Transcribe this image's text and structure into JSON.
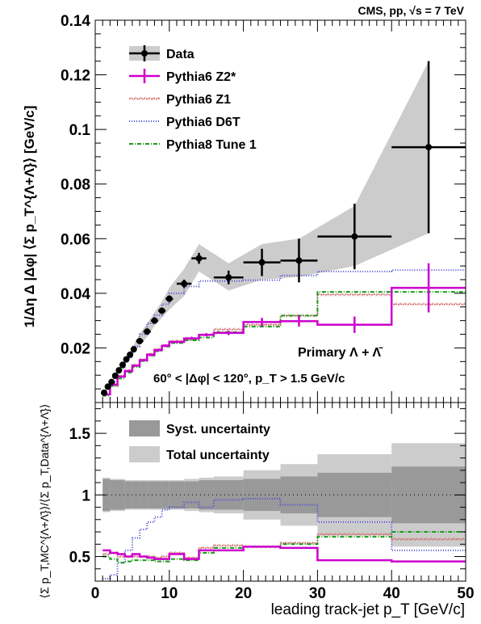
{
  "header": {
    "label": "CMS, pp, √s = 7 TeV"
  },
  "chart_data": {
    "type": "line",
    "title": "",
    "xlabel": "leading track-jet p_T [GeV/c]",
    "xlim": [
      0,
      50
    ],
    "top": {
      "ylabel": "1/Δη Δ |Δφ| ⟨Σ p_T^{Λ+Λ̄}⟩ [GeV/c]",
      "ylim": [
        0,
        0.14
      ],
      "yticks": [
        0.02,
        0.04,
        0.06,
        0.08,
        0.1,
        0.12,
        0.14
      ],
      "legend": [
        "Data",
        "Pythia6 Z2*",
        "Pythia6 Z1",
        "Pythia6 D6T",
        "Pythia8 Tune 1"
      ],
      "annotation1": "Primary Λ + Λ̄",
      "annotation2": "60° < |Δφ| < 120°, p_T > 1.5 GeV/c",
      "data": {
        "x": [
          1.2,
          1.7,
          2.2,
          2.7,
          3.2,
          3.7,
          4.2,
          4.7,
          5.2,
          6,
          7,
          8,
          9,
          10,
          12,
          14,
          18,
          22.5,
          27.5,
          35,
          45
        ],
        "xerr": [
          0.25,
          0.25,
          0.25,
          0.25,
          0.25,
          0.25,
          0.25,
          0.25,
          0.25,
          0.5,
          0.5,
          0.5,
          0.5,
          0.5,
          1,
          1,
          2,
          2.5,
          2.5,
          5,
          5
        ],
        "y": [
          0.0036,
          0.0058,
          0.0075,
          0.0098,
          0.0118,
          0.0138,
          0.0158,
          0.0175,
          0.0195,
          0.0225,
          0.026,
          0.03,
          0.0336,
          0.038,
          0.0435,
          0.0528,
          0.0458,
          0.0513,
          0.052,
          0.0608,
          0.0935
        ],
        "yerr": [
          0.0004,
          0.0005,
          0.0005,
          0.0005,
          0.0006,
          0.0006,
          0.0006,
          0.0007,
          0.0007,
          0.0008,
          0.0009,
          0.001,
          0.001,
          0.0012,
          0.0015,
          0.002,
          0.0025,
          0.005,
          0.008,
          0.012,
          0.0315
        ],
        "band_low": [
          0.0033,
          0.0052,
          0.0068,
          0.009,
          0.011,
          0.0128,
          0.0146,
          0.0162,
          0.018,
          0.021,
          0.024,
          0.028,
          0.031,
          0.034,
          0.039,
          0.048,
          0.041,
          0.045,
          0.046,
          0.05,
          0.062
        ],
        "band_high": [
          0.0039,
          0.0064,
          0.0082,
          0.0106,
          0.0128,
          0.0148,
          0.017,
          0.0188,
          0.021,
          0.025,
          0.029,
          0.033,
          0.037,
          0.042,
          0.049,
          0.058,
          0.051,
          0.058,
          0.06,
          0.072,
          0.125
        ]
      },
      "series": [
        {
          "name": "Pythia6 Z2*",
          "edges": [
            1,
            2,
            3,
            4,
            5,
            6,
            7,
            8,
            9,
            10,
            12,
            14,
            16,
            20,
            25,
            30,
            40,
            50
          ],
          "values": [
            0.003,
            0.0065,
            0.0095,
            0.0115,
            0.0135,
            0.0155,
            0.0175,
            0.0192,
            0.0208,
            0.0222,
            0.0235,
            0.0248,
            0.0255,
            0.0295,
            0.0298,
            0.0285,
            0.042
          ],
          "yerr": [
            0.0003,
            0.0004,
            0.0004,
            0.0004,
            0.0004,
            0.0004,
            0.0005,
            0.0005,
            0.0005,
            0.0005,
            0.0006,
            0.0006,
            0.0008,
            0.0015,
            0.002,
            0.003,
            0.009
          ]
        },
        {
          "name": "Pythia6 Z1",
          "edges": [
            1,
            2,
            3,
            4,
            5,
            6,
            7,
            8,
            9,
            10,
            12,
            14,
            16,
            20,
            25,
            30,
            40,
            50
          ],
          "values": [
            0.003,
            0.0065,
            0.0098,
            0.0118,
            0.0138,
            0.0158,
            0.0178,
            0.0195,
            0.021,
            0.0225,
            0.0232,
            0.0248,
            0.0268,
            0.0285,
            0.0318,
            0.0395,
            0.036
          ]
        },
        {
          "name": "Pythia6 D6T",
          "edges": [
            1,
            2,
            3,
            4,
            5,
            6,
            7,
            8,
            9,
            10,
            12,
            14,
            16,
            20,
            25,
            30,
            40,
            50
          ],
          "values": [
            0.003,
            0.0075,
            0.0125,
            0.0165,
            0.0205,
            0.025,
            0.029,
            0.032,
            0.036,
            0.04,
            0.0425,
            0.0445,
            0.0445,
            0.0448,
            0.0465,
            0.048,
            0.0485
          ]
        },
        {
          "name": "Pythia8 Tune 1",
          "edges": [
            1,
            2,
            3,
            4,
            5,
            6,
            7,
            8,
            9,
            10,
            12,
            14,
            16,
            20,
            25,
            30,
            40,
            50
          ],
          "values": [
            0.0025,
            0.006,
            0.0088,
            0.011,
            0.013,
            0.0152,
            0.0172,
            0.0188,
            0.0205,
            0.0218,
            0.0228,
            0.0238,
            0.0258,
            0.0278,
            0.0318,
            0.0405,
            0.0405
          ]
        }
      ]
    },
    "bottom": {
      "ylabel": "⟨Σ p_T,MC^{Λ+Λ̄}⟩/⟨Σ p_T,Data^{Λ+Λ̄}⟩",
      "ylim": [
        0.3,
        1.75
      ],
      "yticks": [
        0.5,
        1,
        1.5
      ],
      "legend": [
        "Syst. uncertainty",
        "Total uncertainty"
      ],
      "edges": [
        1,
        2,
        3,
        4,
        5,
        6,
        7,
        8,
        9,
        10,
        12,
        14,
        16,
        20,
        25,
        30,
        40,
        50
      ],
      "syst": [
        0.13,
        0.12,
        0.12,
        0.11,
        0.11,
        0.11,
        0.11,
        0.11,
        0.11,
        0.11,
        0.11,
        0.12,
        0.12,
        0.13,
        0.15,
        0.18,
        0.23
      ],
      "total": [
        0.14,
        0.13,
        0.13,
        0.12,
        0.12,
        0.12,
        0.12,
        0.12,
        0.12,
        0.12,
        0.13,
        0.14,
        0.15,
        0.2,
        0.25,
        0.33,
        0.42
      ],
      "ratios": [
        {
          "name": "Pythia6 Z2*",
          "values": [
            0.55,
            0.53,
            0.52,
            0.5,
            0.52,
            0.5,
            0.49,
            0.48,
            0.48,
            0.52,
            0.48,
            0.55,
            0.55,
            0.58,
            0.57,
            0.47,
            0.46
          ]
        },
        {
          "name": "Pythia6 Z1",
          "values": [
            0.52,
            0.53,
            0.5,
            0.5,
            0.5,
            0.5,
            0.5,
            0.49,
            0.5,
            0.53,
            0.49,
            0.57,
            0.59,
            0.58,
            0.61,
            0.68,
            0.64
          ]
        },
        {
          "name": "Pythia6 D6T",
          "values": [
            0.32,
            0.35,
            0.45,
            0.55,
            0.65,
            0.72,
            0.78,
            0.82,
            0.88,
            0.9,
            0.94,
            0.9,
            0.96,
            0.97,
            0.92,
            0.78,
            0.55
          ]
        },
        {
          "name": "Pythia8 Tune 1",
          "values": [
            0.5,
            0.48,
            0.45,
            0.46,
            0.47,
            0.47,
            0.47,
            0.46,
            0.46,
            0.48,
            0.47,
            0.53,
            0.57,
            0.58,
            0.6,
            0.66,
            0.7
          ]
        }
      ]
    },
    "colors": {
      "data": "#000000",
      "z2": "#cc00cc",
      "z1": "#d07070",
      "d6t": "#4a4ad8",
      "p8": "#1a9a1a",
      "syst": "#999999",
      "total": "#cccccc"
    }
  }
}
